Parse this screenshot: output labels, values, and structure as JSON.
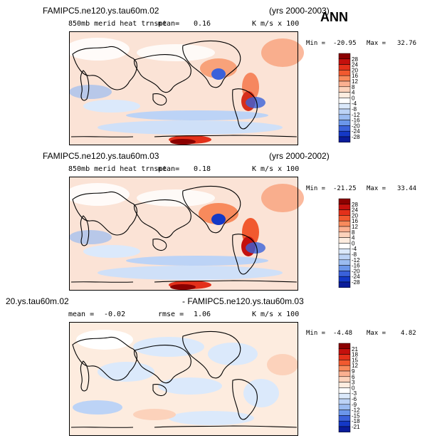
{
  "season": "ANN",
  "chart_data": [
    {
      "type": "heatmap",
      "title": "FAMIPC5.ne120.ys.tau60m.02",
      "years": "(yrs 2000-2003)",
      "subtitle": "850mb merid heat trnspt",
      "mean_label": "mean=",
      "mean": "0.16",
      "units": "K m/s x 100",
      "min_label": "Min =",
      "min": "-20.95",
      "max_label": "Max =",
      "max": "32.76",
      "colorbar": {
        "levels": [
          "28",
          "24",
          "20",
          "16",
          "12",
          "8",
          "4",
          "0",
          "-4",
          "-8",
          "-12",
          "-16",
          "-20",
          "-24",
          "-28"
        ],
        "colors": [
          "#8b0000",
          "#c4100d",
          "#e3301a",
          "#f1592f",
          "#f88a5c",
          "#fbb090",
          "#fcd2bb",
          "#fdecdf",
          "#ffffff",
          "#dbe9fb",
          "#bcd3f6",
          "#9bbcf1",
          "#6b96ea",
          "#3a61da",
          "#1438c6",
          "#0a1c9a"
        ]
      }
    },
    {
      "type": "heatmap",
      "title": "FAMIPC5.ne120.ys.tau60m.03",
      "years": "(yrs 2000-2002)",
      "subtitle": "850mb merid heat trnspt",
      "mean_label": "mean=",
      "mean": "0.18",
      "units": "K m/s x 100",
      "min_label": "Min =",
      "min": "-21.25",
      "max_label": "Max =",
      "max": "33.44",
      "colorbar": {
        "levels": [
          "28",
          "24",
          "20",
          "16",
          "12",
          "8",
          "4",
          "0",
          "-4",
          "-8",
          "-12",
          "-16",
          "-20",
          "-24",
          "-28"
        ],
        "colors": [
          "#8b0000",
          "#c4100d",
          "#e3301a",
          "#f1592f",
          "#f88a5c",
          "#fbb090",
          "#fcd2bb",
          "#fdecdf",
          "#ffffff",
          "#dbe9fb",
          "#bcd3f6",
          "#9bbcf1",
          "#6b96ea",
          "#3a61da",
          "#1438c6",
          "#0a1c9a"
        ]
      }
    },
    {
      "type": "heatmap",
      "title_left": "20.ys.tau60m.02",
      "title_right": "- FAMIPC5.ne120.ys.tau60m.03",
      "mean_label": "mean =",
      "mean": "-0.02",
      "rmse_label": "rmse =",
      "rmse": "1.06",
      "units": "K m/s x 100",
      "min_label": "Min =",
      "min": "-4.48",
      "max_label": "Max =",
      "max": "4.82",
      "colorbar": {
        "levels": [
          "21",
          "18",
          "15",
          "12",
          "9",
          "6",
          "3",
          "0",
          "-3",
          "-6",
          "-9",
          "-12",
          "-15",
          "-18",
          "-21"
        ],
        "colors": [
          "#8b0000",
          "#c4100d",
          "#e3301a",
          "#f1592f",
          "#f88a5c",
          "#fbb090",
          "#fcd2bb",
          "#fdecdf",
          "#ffffff",
          "#dbe9fb",
          "#bcd3f6",
          "#9bbcf1",
          "#6b96ea",
          "#3a61da",
          "#1438c6",
          "#0a1c9a"
        ]
      }
    }
  ]
}
